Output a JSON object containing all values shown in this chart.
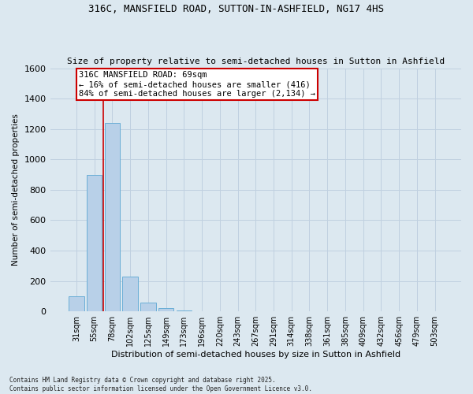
{
  "title": "316C, MANSFIELD ROAD, SUTTON-IN-ASHFIELD, NG17 4HS",
  "subtitle": "Size of property relative to semi-detached houses in Sutton in Ashfield",
  "xlabel": "Distribution of semi-detached houses by size in Sutton in Ashfield",
  "ylabel": "Number of semi-detached properties",
  "bar_labels": [
    "31sqm",
    "55sqm",
    "78sqm",
    "102sqm",
    "125sqm",
    "149sqm",
    "173sqm",
    "196sqm",
    "220sqm",
    "243sqm",
    "267sqm",
    "291sqm",
    "314sqm",
    "338sqm",
    "361sqm",
    "385sqm",
    "409sqm",
    "432sqm",
    "456sqm",
    "479sqm",
    "503sqm"
  ],
  "bar_values": [
    100,
    900,
    1240,
    230,
    60,
    20,
    5,
    2,
    0,
    0,
    0,
    0,
    0,
    0,
    0,
    0,
    0,
    0,
    0,
    0,
    0
  ],
  "bar_color": "#b8d0e8",
  "bar_edge_color": "#6baed6",
  "grid_color": "#c0d0e0",
  "background_color": "#dce8f0",
  "property_label": "316C MANSFIELD ROAD: 69sqm",
  "pct_smaller": 16,
  "pct_larger": 84,
  "count_smaller": 416,
  "count_larger": 2134,
  "vline_color": "#cc0000",
  "annotation_box_color": "#cc0000",
  "ylim": [
    0,
    1600
  ],
  "yticks": [
    0,
    200,
    400,
    600,
    800,
    1000,
    1200,
    1400,
    1600
  ],
  "footer_line1": "Contains HM Land Registry data © Crown copyright and database right 2025.",
  "footer_line2": "Contains public sector information licensed under the Open Government Licence v3.0."
}
